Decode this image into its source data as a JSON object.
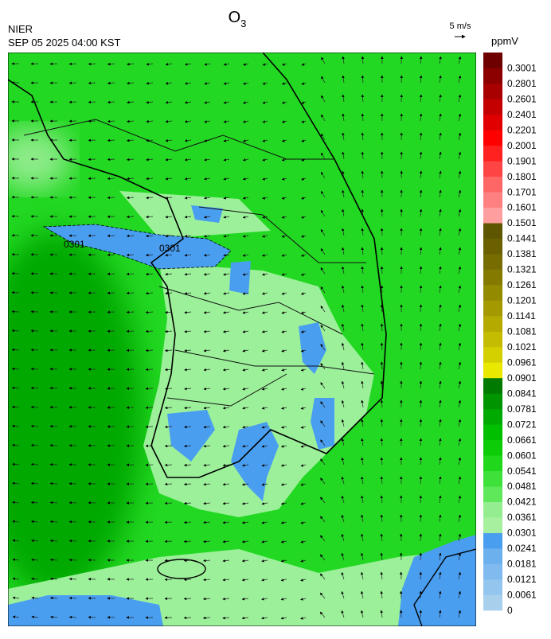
{
  "header": {
    "title": "O",
    "title_subscript": "3",
    "agency": "NIER",
    "datetime": "SEP 05 2025 04:00 KST",
    "wind_scale": "5 m/s"
  },
  "map": {
    "contour_labels": [
      "0301",
      "0301"
    ]
  },
  "colorbar": {
    "unit": "ppmV",
    "labels": [
      0,
      0.0061,
      0.0121,
      0.0181,
      0.0241,
      0.0301,
      0.0361,
      0.0421,
      0.0481,
      0.0541,
      0.0601,
      0.0661,
      0.0721,
      0.0781,
      0.0841,
      0.0901,
      0.0961,
      0.1021,
      0.1081,
      0.1141,
      0.1201,
      0.1261,
      0.1321,
      0.1381,
      0.1441,
      0.1501,
      0.1601,
      0.1701,
      0.1801,
      0.1901,
      0.2001,
      0.2201,
      0.2401,
      0.2601,
      0.2801,
      0.3001
    ],
    "colors": [
      "#a8d0ec",
      "#93c5ee",
      "#80baee",
      "#6cb0ee",
      "#4a9ef0",
      "#a6f0a0",
      "#94ee90",
      "#5ee85a",
      "#3ee03a",
      "#1fd81b",
      "#0ccc08",
      "#00bf00",
      "#00aa00",
      "#009500",
      "#007a00",
      "#e8e800",
      "#d4d000",
      "#c4bc00",
      "#b4aa00",
      "#a49a00",
      "#948a00",
      "#847a00",
      "#766c00",
      "#6a6000",
      "#5e5600",
      "#ff9e9e",
      "#ff8080",
      "#ff6666",
      "#ff4444",
      "#ff2020",
      "#ff0000",
      "#e00000",
      "#c40000",
      "#a80000",
      "#8c0000",
      "#6e0000"
    ]
  }
}
